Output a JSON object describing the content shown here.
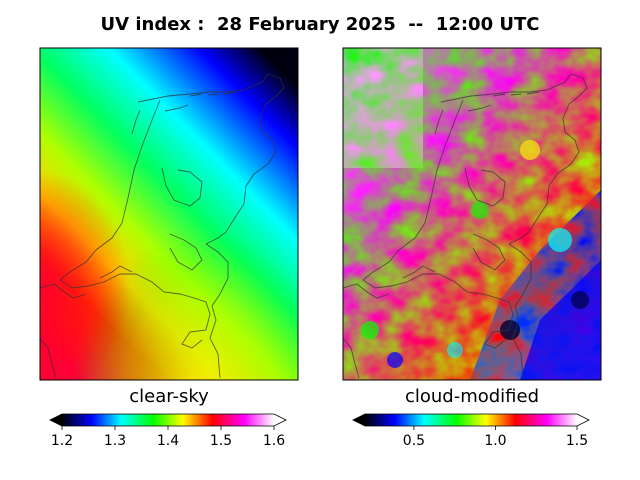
{
  "title": "UV index :  28 February 2025  --  12:00 UTC",
  "panels": [
    {
      "label": "clear-sky",
      "colorbar": {
        "min": 1.2,
        "max": 1.6,
        "extend": "both",
        "ticks": [
          "1.2",
          "1.3",
          "1.4",
          "1.5",
          "1.6"
        ],
        "tick_values": [
          1.2,
          1.3,
          1.4,
          1.5,
          1.6
        ]
      }
    },
    {
      "label": "cloud-modified",
      "colorbar": {
        "min": 0.2,
        "max": 1.5,
        "extend": "both",
        "ticks": [
          "0.5",
          "1.0",
          "1.5"
        ],
        "tick_values": [
          0.5,
          1.0,
          1.5
        ]
      }
    }
  ],
  "colormap_stops": [
    "#000000",
    "#0000ff",
    "#00ffff",
    "#00ff00",
    "#ffff00",
    "#ff0000",
    "#ff00ff",
    "#ffffff"
  ]
}
